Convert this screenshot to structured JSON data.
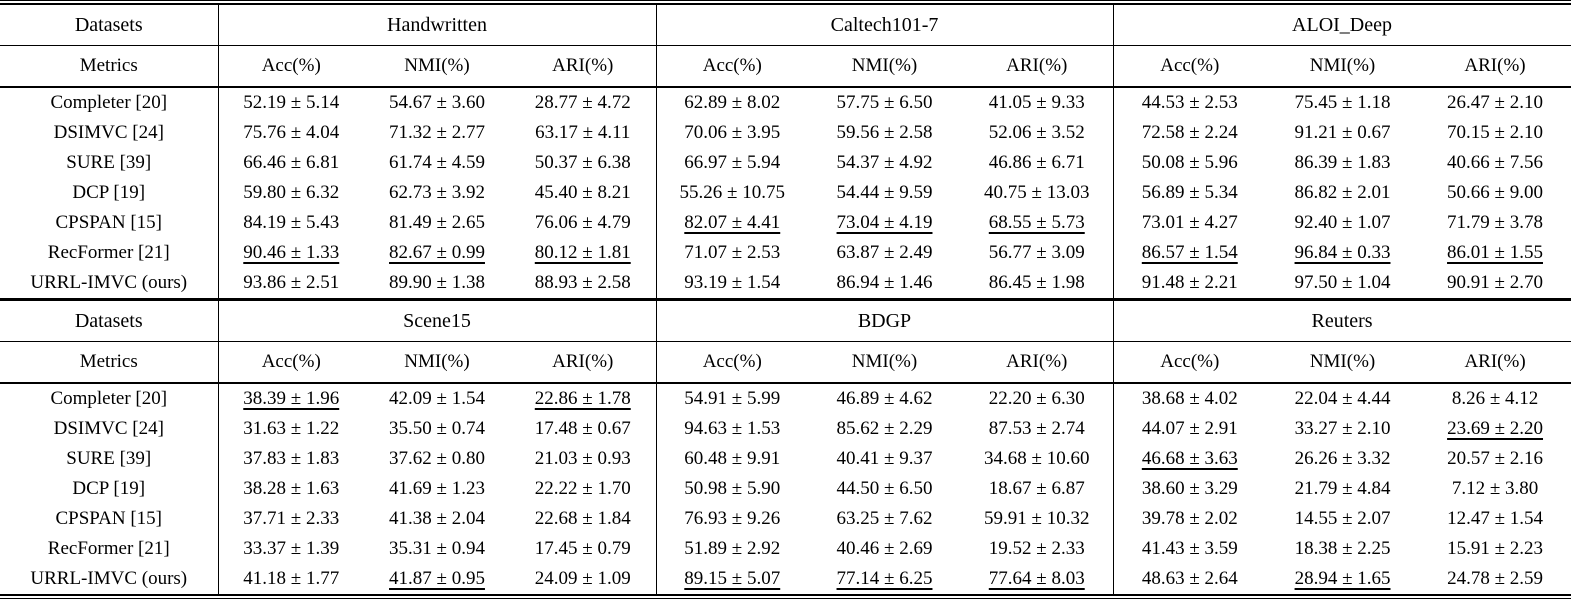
{
  "styles": {
    "text_color": "#000000",
    "background": "#ffffff",
    "rule_color": "#000000"
  },
  "tables": [
    {
      "header": {
        "datasets_label": "Datasets",
        "metrics_label": "Metrics",
        "groups": [
          "Handwritten",
          "Caltech101-7",
          "ALOI_Deep"
        ],
        "metric_columns": [
          "Acc(%)",
          "NMI(%)",
          "ARI(%)"
        ]
      },
      "rows": [
        {
          "method": "Completer [20]",
          "cells": [
            {
              "v": "52.19 ± 5.14",
              "f": ""
            },
            {
              "v": "54.67 ± 3.60",
              "f": ""
            },
            {
              "v": "28.77 ± 4.72",
              "f": ""
            },
            {
              "v": "62.89 ± 8.02",
              "f": ""
            },
            {
              "v": "57.75 ± 6.50",
              "f": ""
            },
            {
              "v": "41.05 ± 9.33",
              "f": ""
            },
            {
              "v": "44.53 ± 2.53",
              "f": ""
            },
            {
              "v": "75.45 ± 1.18",
              "f": ""
            },
            {
              "v": "26.47 ± 2.10",
              "f": ""
            }
          ]
        },
        {
          "method": "DSIMVC [24]",
          "cells": [
            {
              "v": "75.76 ± 4.04",
              "f": ""
            },
            {
              "v": "71.32 ± 2.77",
              "f": ""
            },
            {
              "v": "63.17 ± 4.11",
              "f": ""
            },
            {
              "v": "70.06 ± 3.95",
              "f": ""
            },
            {
              "v": "59.56 ± 2.58",
              "f": ""
            },
            {
              "v": "52.06 ± 3.52",
              "f": ""
            },
            {
              "v": "72.58 ± 2.24",
              "f": ""
            },
            {
              "v": "91.21 ± 0.67",
              "f": ""
            },
            {
              "v": "70.15 ± 2.10",
              "f": ""
            }
          ]
        },
        {
          "method": "SURE [39]",
          "cells": [
            {
              "v": "66.46 ± 6.81",
              "f": ""
            },
            {
              "v": "61.74 ± 4.59",
              "f": ""
            },
            {
              "v": "50.37 ± 6.38",
              "f": ""
            },
            {
              "v": "66.97 ± 5.94",
              "f": ""
            },
            {
              "v": "54.37 ± 4.92",
              "f": ""
            },
            {
              "v": "46.86 ± 6.71",
              "f": ""
            },
            {
              "v": "50.08 ± 5.96",
              "f": ""
            },
            {
              "v": "86.39 ± 1.83",
              "f": ""
            },
            {
              "v": "40.66 ± 7.56",
              "f": ""
            }
          ]
        },
        {
          "method": "DCP [19]",
          "cells": [
            {
              "v": "59.80 ± 6.32",
              "f": ""
            },
            {
              "v": "62.73 ± 3.92",
              "f": ""
            },
            {
              "v": "45.40 ± 8.21",
              "f": ""
            },
            {
              "v": "55.26 ± 10.75",
              "f": ""
            },
            {
              "v": "54.44 ± 9.59",
              "f": ""
            },
            {
              "v": "40.75 ± 13.03",
              "f": ""
            },
            {
              "v": "56.89 ± 5.34",
              "f": ""
            },
            {
              "v": "86.82 ± 2.01",
              "f": ""
            },
            {
              "v": "50.66 ± 9.00",
              "f": ""
            }
          ]
        },
        {
          "method": "CPSPAN [15]",
          "cells": [
            {
              "v": "84.19 ± 5.43",
              "f": ""
            },
            {
              "v": "81.49 ± 2.65",
              "f": ""
            },
            {
              "v": "76.06 ± 4.79",
              "f": ""
            },
            {
              "v": "82.07 ± 4.41",
              "f": "u"
            },
            {
              "v": "73.04 ± 4.19",
              "f": "u"
            },
            {
              "v": "68.55 ± 5.73",
              "f": "u"
            },
            {
              "v": "73.01 ± 4.27",
              "f": ""
            },
            {
              "v": "92.40 ± 1.07",
              "f": ""
            },
            {
              "v": "71.79 ± 3.78",
              "f": ""
            }
          ]
        },
        {
          "method": "RecFormer [21]",
          "cells": [
            {
              "v": "90.46 ± 1.33",
              "f": "u"
            },
            {
              "v": "82.67 ± 0.99",
              "f": "u"
            },
            {
              "v": "80.12 ± 1.81",
              "f": "u"
            },
            {
              "v": "71.07 ± 2.53",
              "f": ""
            },
            {
              "v": "63.87 ± 2.49",
              "f": ""
            },
            {
              "v": "56.77 ± 3.09",
              "f": ""
            },
            {
              "v": "86.57 ± 1.54",
              "f": "u"
            },
            {
              "v": "96.84 ± 0.33",
              "f": "u"
            },
            {
              "v": "86.01 ± 1.55",
              "f": "u"
            }
          ]
        },
        {
          "method": "URRL-IMVC (ours)",
          "cells": [
            {
              "v": "93.86 ± 2.51",
              "f": "b"
            },
            {
              "v": "89.90 ± 1.38",
              "f": "b"
            },
            {
              "v": "88.93 ± 2.58",
              "f": "b"
            },
            {
              "v": "93.19 ± 1.54",
              "f": "b"
            },
            {
              "v": "86.94 ± 1.46",
              "f": "b"
            },
            {
              "v": "86.45 ± 1.98",
              "f": "b"
            },
            {
              "v": "91.48 ± 2.21",
              "f": "b"
            },
            {
              "v": "97.50 ± 1.04",
              "f": "b"
            },
            {
              "v": "90.91 ± 2.70",
              "f": "b"
            }
          ]
        }
      ]
    },
    {
      "header": {
        "datasets_label": "Datasets",
        "metrics_label": "Metrics",
        "groups": [
          "Scene15",
          "BDGP",
          "Reuters"
        ],
        "metric_columns": [
          "Acc(%)",
          "NMI(%)",
          "ARI(%)"
        ]
      },
      "rows": [
        {
          "method": "Completer [20]",
          "cells": [
            {
              "v": "38.39 ± 1.96",
              "f": "u"
            },
            {
              "v": "42.09 ± 1.54",
              "f": "b"
            },
            {
              "v": "22.86 ± 1.78",
              "f": "u"
            },
            {
              "v": "54.91 ± 5.99",
              "f": ""
            },
            {
              "v": "46.89 ± 4.62",
              "f": ""
            },
            {
              "v": "22.20 ± 6.30",
              "f": ""
            },
            {
              "v": "38.68 ± 4.02",
              "f": ""
            },
            {
              "v": "22.04 ± 4.44",
              "f": ""
            },
            {
              "v": "8.26 ± 4.12",
              "f": ""
            }
          ]
        },
        {
          "method": "DSIMVC [24]",
          "cells": [
            {
              "v": "31.63 ± 1.22",
              "f": ""
            },
            {
              "v": "35.50 ± 0.74",
              "f": ""
            },
            {
              "v": "17.48 ± 0.67",
              "f": ""
            },
            {
              "v": "94.63 ± 1.53",
              "f": "b"
            },
            {
              "v": "85.62 ± 2.29",
              "f": "b"
            },
            {
              "v": "87.53 ± 2.74",
              "f": "b"
            },
            {
              "v": "44.07 ± 2.91",
              "f": ""
            },
            {
              "v": "33.27 ± 2.10",
              "f": "b"
            },
            {
              "v": "23.69 ± 2.20",
              "f": "u"
            }
          ]
        },
        {
          "method": "SURE [39]",
          "cells": [
            {
              "v": "37.83 ± 1.83",
              "f": ""
            },
            {
              "v": "37.62 ± 0.80",
              "f": ""
            },
            {
              "v": "21.03 ± 0.93",
              "f": ""
            },
            {
              "v": "60.48 ± 9.91",
              "f": ""
            },
            {
              "v": "40.41 ± 9.37",
              "f": ""
            },
            {
              "v": "34.68 ± 10.60",
              "f": ""
            },
            {
              "v": "46.68 ± 3.63",
              "f": "u"
            },
            {
              "v": "26.26 ± 3.32",
              "f": ""
            },
            {
              "v": "20.57 ± 2.16",
              "f": ""
            }
          ]
        },
        {
          "method": "DCP [19]",
          "cells": [
            {
              "v": "38.28 ± 1.63",
              "f": ""
            },
            {
              "v": "41.69 ± 1.23",
              "f": ""
            },
            {
              "v": "22.22 ± 1.70",
              "f": ""
            },
            {
              "v": "50.98 ± 5.90",
              "f": ""
            },
            {
              "v": "44.50 ± 6.50",
              "f": ""
            },
            {
              "v": "18.67 ± 6.87",
              "f": ""
            },
            {
              "v": "38.60 ± 3.29",
              "f": ""
            },
            {
              "v": "21.79 ± 4.84",
              "f": ""
            },
            {
              "v": "7.12 ± 3.80",
              "f": ""
            }
          ]
        },
        {
          "method": "CPSPAN [15]",
          "cells": [
            {
              "v": "37.71 ± 2.33",
              "f": ""
            },
            {
              "v": "41.38 ± 2.04",
              "f": ""
            },
            {
              "v": "22.68 ± 1.84",
              "f": ""
            },
            {
              "v": "76.93 ± 9.26",
              "f": ""
            },
            {
              "v": "63.25 ± 7.62",
              "f": ""
            },
            {
              "v": "59.91 ± 10.32",
              "f": ""
            },
            {
              "v": "39.78 ± 2.02",
              "f": ""
            },
            {
              "v": "14.55 ± 2.07",
              "f": ""
            },
            {
              "v": "12.47 ± 1.54",
              "f": ""
            }
          ]
        },
        {
          "method": "RecFormer [21]",
          "cells": [
            {
              "v": "33.37 ± 1.39",
              "f": ""
            },
            {
              "v": "35.31 ± 0.94",
              "f": ""
            },
            {
              "v": "17.45 ± 0.79",
              "f": ""
            },
            {
              "v": "51.89 ± 2.92",
              "f": ""
            },
            {
              "v": "40.46 ± 2.69",
              "f": ""
            },
            {
              "v": "19.52 ± 2.33",
              "f": ""
            },
            {
              "v": "41.43 ± 3.59",
              "f": ""
            },
            {
              "v": "18.38 ± 2.25",
              "f": ""
            },
            {
              "v": "15.91 ± 2.23",
              "f": ""
            }
          ]
        },
        {
          "method": "URRL-IMVC (ours)",
          "cells": [
            {
              "v": "41.18 ± 1.77",
              "f": "b"
            },
            {
              "v": "41.87 ± 0.95",
              "f": "u"
            },
            {
              "v": "24.09 ± 1.09",
              "f": "b"
            },
            {
              "v": "89.15 ± 5.07",
              "f": "u"
            },
            {
              "v": "77.14 ± 6.25",
              "f": "u"
            },
            {
              "v": "77.64 ± 8.03",
              "f": "u"
            },
            {
              "v": "48.63 ± 2.64",
              "f": "b"
            },
            {
              "v": "28.94 ± 1.65",
              "f": "u"
            },
            {
              "v": "24.78 ± 2.59",
              "f": "b"
            }
          ]
        }
      ]
    }
  ]
}
